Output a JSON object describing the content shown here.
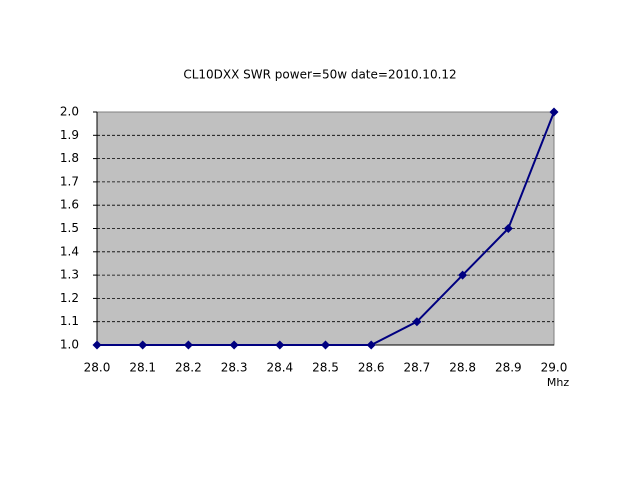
{
  "chart_data": {
    "type": "line",
    "title": "CL10DXX SWR power=50w date=2010.10.12",
    "x_label": "Mhz",
    "categories": [
      "28.0",
      "28.1",
      "28.2",
      "28.3",
      "28.4",
      "28.5",
      "28.6",
      "28.7",
      "28.8",
      "28.9",
      "29.0"
    ],
    "series": [
      {
        "name": "SWR",
        "color": "#000080",
        "values": [
          1.0,
          1.0,
          1.0,
          1.0,
          1.0,
          1.0,
          1.0,
          1.1,
          1.3,
          1.5,
          2.0
        ]
      }
    ],
    "ylim": [
      1.0,
      2.0
    ],
    "yticks": [
      {
        "value": 1.0,
        "label": "1.0"
      },
      1.1,
      1.2,
      1.3,
      1.4,
      1.5,
      1.6,
      1.7,
      1.8,
      1.9,
      {
        "value": 2.0,
        "label": "2.0"
      }
    ],
    "grid": true,
    "plot_background": "#c0c0c0"
  }
}
